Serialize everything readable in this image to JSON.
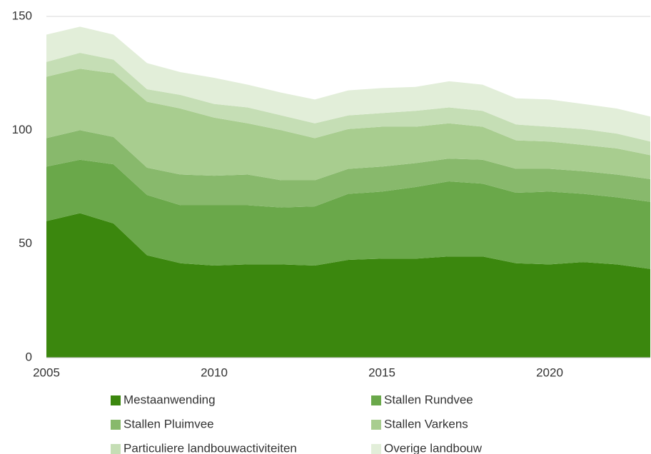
{
  "chart_data": {
    "type": "stacked_area",
    "x": [
      2005,
      2006,
      2007,
      2008,
      2009,
      2010,
      2011,
      2012,
      2013,
      2014,
      2015,
      2016,
      2017,
      2018,
      2019,
      2020,
      2021,
      2022,
      2023
    ],
    "xlim": [
      2005,
      2023
    ],
    "xticks": [
      2005,
      2010,
      2015,
      2020
    ],
    "ylim": [
      0,
      150
    ],
    "yticks": [
      0,
      50,
      100,
      150
    ],
    "grid": true,
    "series": [
      {
        "name": "Mestaanwending",
        "color": "#3b870e",
        "values": [
          60,
          63.5,
          59,
          45,
          41.5,
          40.5,
          41,
          41,
          40.5,
          43,
          43.5,
          43.5,
          44.5,
          44.5,
          41.5,
          41,
          42,
          41,
          39
        ]
      },
      {
        "name": "Stallen Rundvee",
        "color": "#6aa84a",
        "values": [
          24,
          23.5,
          26,
          26.5,
          25.5,
          26.5,
          26,
          25,
          26,
          29,
          29.5,
          31.5,
          33,
          32,
          31,
          32,
          30,
          29.5,
          29.5
        ]
      },
      {
        "name": "Stallen Pluimvee",
        "color": "#88b96c",
        "values": [
          12.5,
          13,
          12,
          12,
          13.5,
          13,
          13.5,
          12,
          11.5,
          11,
          11,
          10.5,
          10,
          10.5,
          10.5,
          10,
          10,
          10,
          10
        ]
      },
      {
        "name": "Stallen Varkens",
        "color": "#a8cd8f",
        "values": [
          27,
          27,
          28,
          29,
          29,
          25.5,
          22.5,
          22,
          18.5,
          17.5,
          17.5,
          16,
          15.5,
          14.5,
          12.5,
          12,
          11.5,
          11.5,
          10.5
        ]
      },
      {
        "name": "Particuliere landbouwactiviteiten",
        "color": "#c5deb5",
        "values": [
          6.5,
          7,
          6,
          5.5,
          6,
          6,
          7,
          6.5,
          6.5,
          6,
          6,
          7,
          7,
          7,
          7,
          6.5,
          7,
          6.5,
          6
        ]
      },
      {
        "name": "Overige landbouw",
        "color": "#e2eed9",
        "values": [
          12,
          11.5,
          11,
          11.5,
          10,
          11.5,
          10,
          10,
          10.5,
          11,
          11,
          10.5,
          11.5,
          11.5,
          11.5,
          12,
          11,
          11,
          11
        ]
      }
    ]
  }
}
